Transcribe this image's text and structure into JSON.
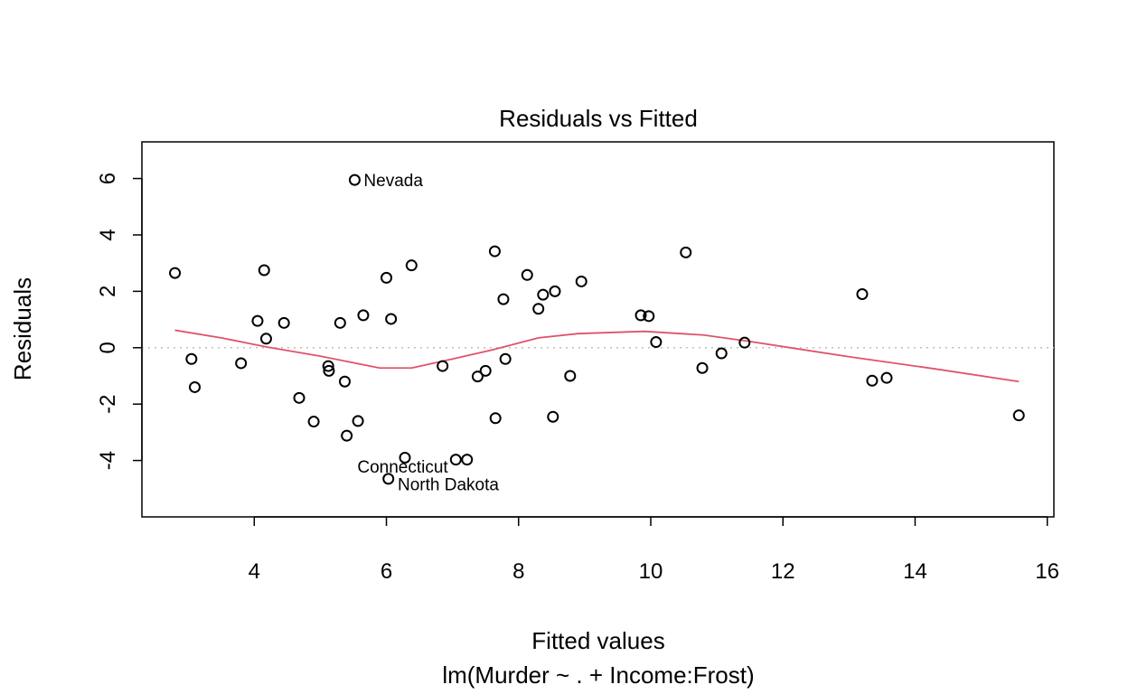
{
  "chart_data": {
    "type": "scatter",
    "title": "Residuals vs Fitted",
    "xlabel": "Fitted values",
    "ylabel": "Residuals",
    "subtitle": "lm(Murder ~ . + Income:Frost)",
    "xlim": [
      2.3,
      16.1
    ],
    "ylim": [
      -6.0,
      7.3
    ],
    "xticks": [
      4,
      6,
      8,
      10,
      12,
      14,
      16
    ],
    "yticks": [
      -4,
      -2,
      0,
      2,
      4,
      6
    ],
    "reference_line_y": 0,
    "points": [
      {
        "x": 2.8,
        "y": 2.65
      },
      {
        "x": 3.05,
        "y": -0.4
      },
      {
        "x": 3.1,
        "y": -1.4
      },
      {
        "x": 3.8,
        "y": -0.55
      },
      {
        "x": 4.05,
        "y": 0.95
      },
      {
        "x": 4.15,
        "y": 2.75
      },
      {
        "x": 4.18,
        "y": 0.32
      },
      {
        "x": 4.45,
        "y": 0.88
      },
      {
        "x": 4.68,
        "y": -1.78
      },
      {
        "x": 4.9,
        "y": -2.62
      },
      {
        "x": 5.12,
        "y": -0.65
      },
      {
        "x": 5.13,
        "y": -0.82
      },
      {
        "x": 5.3,
        "y": 0.88
      },
      {
        "x": 5.37,
        "y": -1.2
      },
      {
        "x": 5.4,
        "y": -3.12
      },
      {
        "x": 5.52,
        "y": 5.95,
        "label": "Nevada"
      },
      {
        "x": 5.57,
        "y": -2.6
      },
      {
        "x": 5.65,
        "y": 1.15
      },
      {
        "x": 6.0,
        "y": 2.48
      },
      {
        "x": 6.03,
        "y": -4.65,
        "label": "Connecticut"
      },
      {
        "x": 6.07,
        "y": 1.02
      },
      {
        "x": 6.28,
        "y": -3.9
      },
      {
        "x": 6.38,
        "y": 2.92,
        "label": "North Dakota"
      },
      {
        "x": 6.85,
        "y": -0.65
      },
      {
        "x": 7.05,
        "y": -3.97
      },
      {
        "x": 7.22,
        "y": -3.97
      },
      {
        "x": 7.38,
        "y": -1.02
      },
      {
        "x": 7.5,
        "y": -0.82
      },
      {
        "x": 7.64,
        "y": 3.42
      },
      {
        "x": 7.65,
        "y": -2.5
      },
      {
        "x": 7.77,
        "y": 1.72
      },
      {
        "x": 7.8,
        "y": -0.4
      },
      {
        "x": 8.13,
        "y": 2.58
      },
      {
        "x": 8.3,
        "y": 1.38
      },
      {
        "x": 8.37,
        "y": 1.88
      },
      {
        "x": 8.52,
        "y": -2.45
      },
      {
        "x": 8.55,
        "y": 2.0
      },
      {
        "x": 8.78,
        "y": -1.0
      },
      {
        "x": 8.95,
        "y": 2.35
      },
      {
        "x": 9.85,
        "y": 1.15
      },
      {
        "x": 9.97,
        "y": 1.12
      },
      {
        "x": 10.08,
        "y": 0.2
      },
      {
        "x": 10.53,
        "y": 3.38
      },
      {
        "x": 10.78,
        "y": -0.72
      },
      {
        "x": 11.07,
        "y": -0.2
      },
      {
        "x": 11.42,
        "y": 0.18
      },
      {
        "x": 13.2,
        "y": 1.9
      },
      {
        "x": 13.35,
        "y": -1.17
      },
      {
        "x": 13.57,
        "y": -1.07
      },
      {
        "x": 15.57,
        "y": -2.4
      }
    ],
    "smoother": [
      {
        "x": 2.8,
        "y": 0.62
      },
      {
        "x": 3.5,
        "y": 0.35
      },
      {
        "x": 4.2,
        "y": 0.02
      },
      {
        "x": 5.0,
        "y": -0.3
      },
      {
        "x": 5.9,
        "y": -0.72
      },
      {
        "x": 6.38,
        "y": -0.72
      },
      {
        "x": 7.0,
        "y": -0.4
      },
      {
        "x": 7.6,
        "y": -0.08
      },
      {
        "x": 8.3,
        "y": 0.35
      },
      {
        "x": 8.9,
        "y": 0.5
      },
      {
        "x": 9.9,
        "y": 0.58
      },
      {
        "x": 10.8,
        "y": 0.45
      },
      {
        "x": 11.5,
        "y": 0.22
      },
      {
        "x": 13.0,
        "y": -0.32
      },
      {
        "x": 14.3,
        "y": -0.75
      },
      {
        "x": 15.57,
        "y": -1.2
      }
    ],
    "colors": {
      "points": "#000000",
      "smoother": "#DF536B",
      "reference_line": "#BEBEBE"
    }
  }
}
